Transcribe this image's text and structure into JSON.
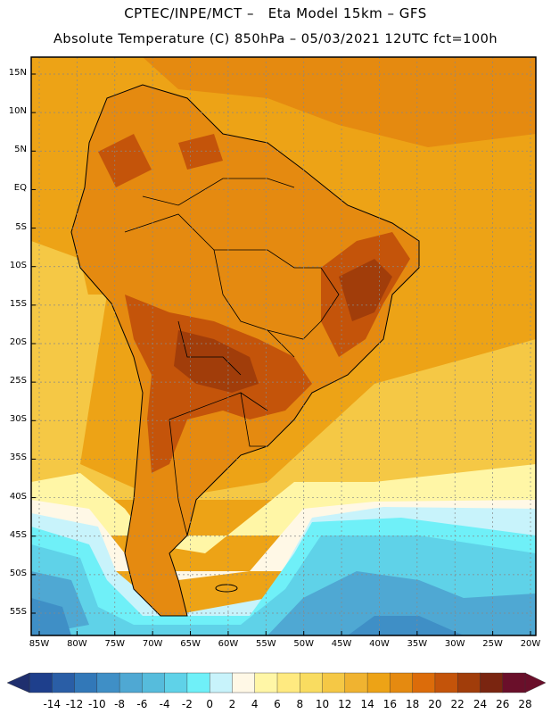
{
  "header": {
    "line1": "CPTEC/INPE/MCT –   Eta Model 15km – GFS",
    "line2": "Absolute Temperature (C) 850hPa – 05/03/2021 12UTC fct=100h"
  },
  "map": {
    "lat_labels": [
      "15N",
      "10N",
      "5N",
      "EQ",
      "5S",
      "10S",
      "15S",
      "20S",
      "25S",
      "30S",
      "35S",
      "40S",
      "45S",
      "50S",
      "55S"
    ],
    "lat_values": [
      15,
      10,
      5,
      0,
      -5,
      -10,
      -15,
      -20,
      -25,
      -30,
      -35,
      -40,
      -45,
      -50,
      -55
    ],
    "lon_labels": [
      "85W",
      "80W",
      "75W",
      "70W",
      "65W",
      "60W",
      "55W",
      "50W",
      "45W",
      "40W",
      "35W",
      "30W",
      "25W",
      "20W"
    ],
    "lon_values": [
      -85,
      -80,
      -75,
      -70,
      -65,
      -60,
      -55,
      -50,
      -45,
      -40,
      -35,
      -30,
      -25,
      -20
    ]
  },
  "colorbar": {
    "ticks": [
      "-14",
      "-12",
      "-10",
      "-8",
      "-6",
      "-4",
      "-2",
      "0",
      "2",
      "4",
      "6",
      "8",
      "10",
      "12",
      "14",
      "16",
      "18",
      "20",
      "22",
      "24",
      "26",
      "28"
    ],
    "colors": [
      "#1e3f8c",
      "#2a5ea6",
      "#3278b8",
      "#3f8fc6",
      "#4fa8d3",
      "#56bcdc",
      "#5fd2e8",
      "#6ff0f8",
      "#c8f3fb",
      "#fff8e6",
      "#fff6a6",
      "#ffea80",
      "#f9dc60",
      "#f5c845",
      "#f0b330",
      "#eda316",
      "#e58a10",
      "#dc6c0a",
      "#c4540a",
      "#a13d0a",
      "#7a2510",
      "#6a0f2a"
    ],
    "end_colors": [
      "#1f2f6e",
      "#6a0f2a"
    ]
  },
  "regions": {
    "ocean_north": "#eda316",
    "ocean_mid": "#f5c845",
    "land": "#e58a10",
    "hot": "#c4540a",
    "hottest": "#a13d0a",
    "cool_band": "#fff6a6",
    "pale": "#fff8e6",
    "cold_1": "#c8f3fb",
    "cold_2": "#6ff0f8",
    "cold_3": "#5fd2e8",
    "cold_4": "#4fa8d3",
    "cold_5": "#3f8fc6"
  }
}
